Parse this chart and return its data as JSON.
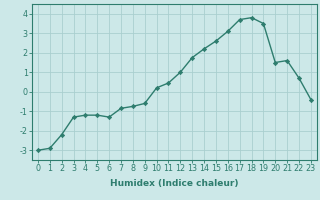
{
  "x": [
    0,
    1,
    2,
    3,
    4,
    5,
    6,
    7,
    8,
    9,
    10,
    11,
    12,
    13,
    14,
    15,
    16,
    17,
    18,
    19,
    20,
    21,
    22,
    23
  ],
  "y": [
    -3.0,
    -2.9,
    -2.2,
    -1.3,
    -1.2,
    -1.2,
    -1.3,
    -0.85,
    -0.75,
    -0.6,
    0.2,
    0.45,
    1.0,
    1.75,
    2.2,
    2.6,
    3.1,
    3.7,
    3.8,
    3.5,
    1.5,
    1.6,
    0.7,
    -0.4
  ],
  "line_color": "#2e7d6e",
  "marker": "D",
  "marker_size": 2.2,
  "bg_color": "#cce8e8",
  "grid_color": "#aacfcf",
  "xlabel": "Humidex (Indice chaleur)",
  "xlim": [
    -0.5,
    23.5
  ],
  "ylim": [
    -3.5,
    4.5
  ],
  "yticks": [
    -3,
    -2,
    -1,
    0,
    1,
    2,
    3,
    4
  ],
  "xticks": [
    0,
    1,
    2,
    3,
    4,
    5,
    6,
    7,
    8,
    9,
    10,
    11,
    12,
    13,
    14,
    15,
    16,
    17,
    18,
    19,
    20,
    21,
    22,
    23
  ],
  "xlabel_fontsize": 6.5,
  "tick_fontsize": 5.8,
  "line_width": 1.0
}
